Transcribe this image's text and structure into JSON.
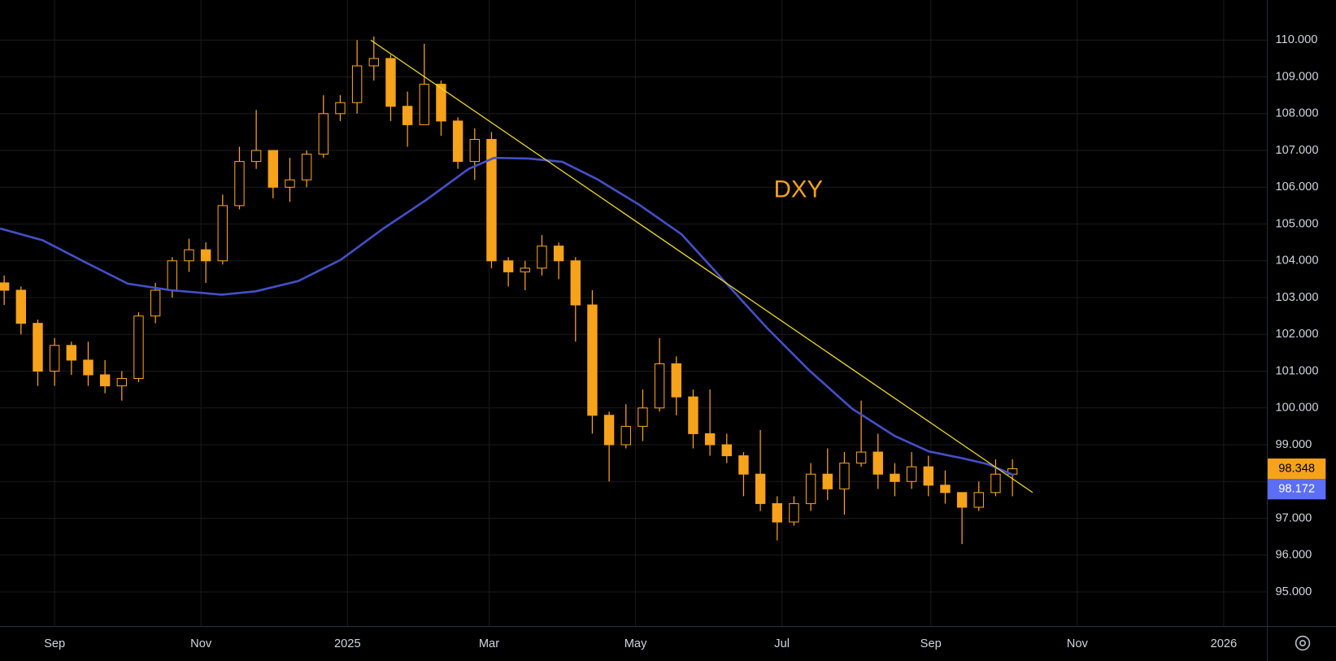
{
  "chart_data": {
    "type": "candlestick",
    "annotation": "DXY",
    "color": "#f7a21b",
    "x": [
      -21,
      -14,
      -7,
      0,
      7,
      14,
      21,
      28,
      35,
      42,
      49,
      56,
      63,
      70,
      77,
      84,
      91,
      98,
      105,
      112,
      119,
      126,
      133,
      140,
      147,
      154,
      161,
      168,
      175,
      182,
      189,
      196,
      203,
      210,
      217,
      224,
      231,
      238,
      245,
      252,
      259,
      266,
      273,
      280,
      287,
      294,
      301,
      308,
      315,
      322,
      329,
      336,
      343,
      350,
      357,
      364,
      371,
      378,
      385,
      392,
      399
    ],
    "open": [
      103.4,
      103.2,
      102.3,
      101.0,
      101.7,
      101.3,
      100.9,
      100.6,
      100.8,
      102.5,
      103.2,
      104.0,
      104.3,
      104.0,
      105.5,
      106.7,
      107.0,
      106.0,
      106.2,
      106.9,
      108.0,
      108.3,
      109.3,
      109.5,
      108.2,
      107.7,
      108.8,
      107.8,
      106.7,
      107.3,
      104.0,
      103.7,
      103.8,
      104.4,
      104.0,
      102.8,
      99.8,
      99.0,
      99.5,
      100.0,
      101.2,
      100.3,
      99.3,
      99.0,
      98.7,
      98.2,
      97.4,
      96.9,
      97.4,
      98.2,
      97.8,
      98.5,
      98.8,
      98.2,
      98.0,
      98.4,
      97.9,
      97.7,
      97.3,
      97.7,
      98.2
    ],
    "high": [
      103.6,
      103.3,
      102.4,
      101.9,
      101.8,
      101.8,
      101.3,
      101.0,
      102.6,
      103.4,
      104.1,
      104.6,
      104.5,
      105.8,
      107.1,
      108.1,
      107.0,
      106.8,
      107.0,
      108.5,
      108.5,
      110.0,
      110.1,
      109.6,
      108.6,
      109.9,
      108.9,
      107.9,
      107.6,
      107.5,
      104.1,
      104.0,
      104.7,
      104.5,
      104.1,
      103.2,
      99.9,
      100.1,
      100.5,
      101.9,
      101.4,
      100.5,
      100.5,
      99.3,
      98.8,
      99.4,
      97.6,
      97.6,
      98.5,
      98.9,
      98.8,
      100.2,
      99.3,
      98.5,
      98.8,
      98.7,
      98.3,
      97.7,
      98.0,
      98.6,
      98.6
    ],
    "low": [
      102.8,
      102.0,
      100.6,
      100.6,
      100.9,
      100.6,
      100.4,
      100.2,
      100.7,
      102.3,
      103.0,
      103.7,
      103.4,
      103.9,
      105.4,
      106.5,
      105.7,
      105.6,
      106.0,
      106.8,
      107.8,
      108.0,
      108.9,
      107.8,
      107.1,
      107.7,
      107.4,
      106.5,
      106.2,
      103.8,
      103.3,
      103.2,
      103.6,
      103.5,
      101.8,
      99.3,
      98.0,
      98.9,
      99.1,
      99.9,
      99.8,
      98.9,
      98.7,
      98.5,
      97.6,
      97.2,
      96.4,
      96.8,
      97.2,
      97.5,
      97.1,
      98.4,
      97.8,
      97.6,
      97.8,
      97.6,
      97.4,
      96.3,
      97.2,
      97.6,
      97.6
    ],
    "close": [
      103.2,
      102.3,
      101.0,
      101.7,
      101.3,
      100.9,
      100.6,
      100.8,
      102.5,
      103.2,
      104.0,
      104.3,
      104.0,
      105.5,
      106.7,
      107.0,
      106.0,
      106.2,
      106.9,
      108.0,
      108.3,
      109.3,
      109.5,
      108.2,
      107.7,
      108.8,
      107.8,
      106.7,
      107.3,
      104.0,
      103.7,
      103.8,
      104.4,
      104.0,
      102.8,
      99.8,
      99.0,
      99.5,
      100.0,
      101.2,
      100.3,
      99.3,
      99.0,
      98.7,
      98.2,
      97.4,
      96.9,
      97.4,
      98.2,
      97.8,
      98.5,
      98.8,
      98.2,
      98.0,
      98.4,
      97.9,
      97.7,
      97.3,
      97.7,
      98.2,
      98.348
    ],
    "ma": {
      "color": "#4350c8",
      "x": [
        -22.7,
        -5.0,
        12.8,
        30.5,
        48.3,
        69.6,
        83.8,
        101.5,
        119.3,
        137.0,
        154.7,
        172.5,
        183.1,
        197.3,
        211.5,
        225.7,
        243.4,
        261.2,
        278.9,
        296.7,
        314.4,
        332.2,
        349.9,
        364.1,
        378.3,
        388.9,
        399.6
      ],
      "values": [
        104.88,
        104.56,
        103.96,
        103.38,
        103.2,
        103.08,
        103.17,
        103.45,
        104.03,
        104.88,
        105.65,
        106.5,
        106.8,
        106.78,
        106.69,
        106.23,
        105.53,
        104.72,
        103.45,
        102.18,
        101.02,
        99.98,
        99.24,
        98.82,
        98.63,
        98.47,
        98.172
      ]
    },
    "trendline": {
      "color": "#f2dd1c",
      "x": [
        131.7,
        407.4
      ],
      "values": [
        110.0,
        97.7
      ]
    },
    "xlim": [
      -22.7,
      505
    ],
    "ylim": [
      94.07,
      111.09
    ],
    "xticks": [
      {
        "value": 0,
        "label": "Sep"
      },
      {
        "value": 61,
        "label": "Nov"
      },
      {
        "value": 122,
        "label": "2025"
      },
      {
        "value": 181,
        "label": "Mar"
      },
      {
        "value": 242,
        "label": "May"
      },
      {
        "value": 303,
        "label": "Jul"
      },
      {
        "value": 365,
        "label": "Sep"
      },
      {
        "value": 426,
        "label": "Nov"
      },
      {
        "value": 487,
        "label": "2026"
      }
    ],
    "yticks": [
      {
        "value": 95,
        "label": "95.000"
      },
      {
        "value": 96,
        "label": "96.000"
      },
      {
        "value": 97,
        "label": "97.000"
      },
      {
        "value": 98,
        "label": "98.000"
      },
      {
        "value": 99,
        "label": "99.000"
      },
      {
        "value": 100,
        "label": "100.000"
      },
      {
        "value": 101,
        "label": "101.000"
      },
      {
        "value": 102,
        "label": "102.000"
      },
      {
        "value": 103,
        "label": "103.000"
      },
      {
        "value": 104,
        "label": "104.000"
      },
      {
        "value": 105,
        "label": "105.000"
      },
      {
        "value": 106,
        "label": "106.000"
      },
      {
        "value": 107,
        "label": "107.000"
      },
      {
        "value": 108,
        "label": "108.000"
      },
      {
        "value": 109,
        "label": "109.000"
      },
      {
        "value": 110,
        "label": "110.000"
      }
    ],
    "grid": true
  }
}
